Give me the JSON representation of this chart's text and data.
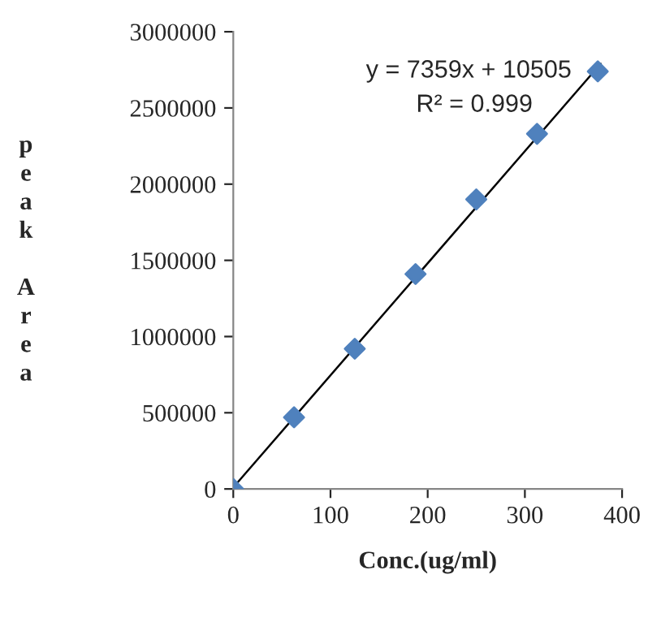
{
  "chart_data": {
    "type": "scatter",
    "xlabel": "Conc.(ug/ml)",
    "ylabel": "peak Area",
    "xlim": [
      0,
      400
    ],
    "xticks": [
      0,
      100,
      200,
      300,
      400
    ],
    "ylim": [
      0,
      3000000
    ],
    "yticks": [
      0,
      500000,
      1000000,
      1500000,
      2000000,
      2500000,
      3000000
    ],
    "marker": "diamond",
    "grid": false,
    "legend": false,
    "series": [
      {
        "color": "#4f81bd",
        "x": [
          0,
          62.5,
          125,
          187.5,
          250,
          312.5,
          375
        ],
        "values": [
          0,
          470000,
          920000,
          1410000,
          1900000,
          2330000,
          2740000
        ]
      },
      {
        "type": "line",
        "marker": "none",
        "color": "#000000",
        "x": [
          0,
          378
        ],
        "values": [
          10000,
          2790000
        ]
      }
    ],
    "annotations": [
      "y = 7359x + 10505",
      "R² = 0.999"
    ]
  }
}
